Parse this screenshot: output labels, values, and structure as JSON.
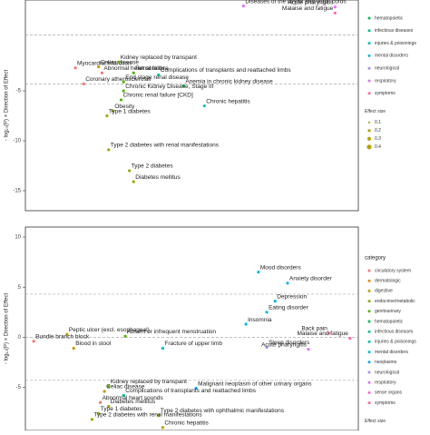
{
  "chart_data": [
    {
      "type": "scatter",
      "y_label": "- log₁₀(P) × Direction of Effect",
      "xlim": [
        0,
        400
      ],
      "ylim": [
        -17,
        4.1
      ],
      "yticks": [
        -15,
        -10,
        -5
      ],
      "hlines": [
        0.6,
        -4.3
      ],
      "x": [
        262,
        372,
        372,
        60,
        88,
        92,
        70,
        112,
        130,
        118,
        160,
        190,
        118,
        115,
        105,
        215,
        98,
        100,
        125,
        130
      ],
      "values": [
        3.5,
        3.4,
        2.8,
        -2.7,
        -2.6,
        -3.2,
        -4.3,
        -2.1,
        -3.2,
        -4.1,
        -3.4,
        -4.5,
        -5.0,
        -5.9,
        -7.0,
        -6.5,
        -7.5,
        -10.9,
        -13.0,
        -14.1
      ],
      "point_labels": [
        "Diseases of the larynx and vocal cords",
        "Acute pharyngitis",
        "Malaise and fatigue",
        "Myocardial infarction",
        "Celiac disease",
        "Abnormal heart sounds",
        "Coronary atherosclerosis",
        "Kidney replaced by transpant",
        "Renal failure",
        "End stage renal disease",
        "Complications of transplants and reattached limbs",
        "Anemia in chronic kidney disease",
        "Chronic Kidney Disease, Stage III",
        "Chronic renal failure [CKD]",
        "Obesity",
        "Chronic hepatitis",
        "Type 1 diabetes",
        "Type 2 diabetes with renal manifestations",
        "Type 2 diabetes",
        "Diabetes mellitus"
      ],
      "colors": [
        "#DF70F8",
        "#DF70F8",
        "#FF66A8",
        "#F8766D",
        "#C49A00",
        "#F8766D",
        "#F8766D",
        "#53B400",
        "#53B400",
        "#53B400",
        "#00C094",
        "#00BC56",
        "#53B400",
        "#53B400",
        "#99A800",
        "#00BFC4",
        "#99A800",
        "#99A800",
        "#99A800",
        "#99A800"
      ],
      "legend": {
        "items": [
          {
            "name": "hematopoietic",
            "color": "#00BC56"
          },
          {
            "name": "infectious diseases",
            "color": "#00C094"
          },
          {
            "name": "injuries & poisonings",
            "color": "#00BFC4"
          },
          {
            "name": "mental disorders",
            "color": "#00B6EB"
          },
          {
            "name": "neurological",
            "color": "#A58AFF"
          },
          {
            "name": "respiratory",
            "color": "#DF70F8"
          },
          {
            "name": "symptoms",
            "color": "#FF66A8"
          }
        ]
      },
      "size_legend": {
        "title": "Effect size",
        "values": [
          0.1,
          0.2,
          0.3,
          0.4
        ]
      }
    },
    {
      "type": "scatter",
      "y_label": "- log₁₀(P) × Direction of Effect",
      "xlim": [
        0,
        400
      ],
      "ylim": [
        -9.3,
        11
      ],
      "yticks": [
        -5,
        0,
        5,
        10
      ],
      "hlines": [
        4.3,
        0,
        -4.3
      ],
      "x": [
        280,
        315,
        300,
        290,
        265,
        50,
        120,
        10,
        58,
        165,
        290,
        340,
        365,
        390,
        100,
        95,
        205,
        118,
        90,
        100,
        88,
        160,
        80,
        165
      ],
      "values": [
        6.5,
        5.4,
        3.6,
        2.5,
        1.3,
        0.3,
        0.1,
        -0.4,
        -1.1,
        -1.1,
        -1.0,
        -1.2,
        0.4,
        -0.1,
        -4.9,
        -5.4,
        -5.1,
        -5.8,
        -6.5,
        -6.9,
        -7.6,
        -7.8,
        -8.2,
        -9.0
      ],
      "point_labels": [
        "Mood disorders",
        "Anxiety disorder",
        "Depression",
        "Eating disorder",
        "Insomnia",
        "Peptic ulcer (excl. esophageal)",
        "Absent or infrequent menstruation",
        "Bundle branch block",
        "Blood in stool",
        "Fracture of upper limb",
        "Sleep disorders",
        "Acute pharyngitis",
        "Back pain",
        "Malaise and fatigue",
        "Kidney replaced by transpant",
        "Celiac disease",
        "Malignant neoplasm of other urinary organs",
        "Complications of transplants and reattached limbs",
        "Abnormal heart sounds",
        "Diabetes mellitus",
        "Type 1 diabetes",
        "Type 2 diabetes with ophthalmic manifestations",
        "Type 2 diabetes with renal manifestations",
        "Chronic hepatitis"
      ],
      "colors": [
        "#00B6EB",
        "#00B6EB",
        "#00B6EB",
        "#00B6EB",
        "#00B6EB",
        "#C49A00",
        "#53B400",
        "#F8766D",
        "#C49A00",
        "#00BFC4",
        "#A58AFF",
        "#DF70F8",
        "#FF66A8",
        "#FF66A8",
        "#53B400",
        "#C49A00",
        "#06A4FF",
        "#00C094",
        "#F8766D",
        "#99A800",
        "#99A800",
        "#99A800",
        "#99A800",
        "#C49A00"
      ],
      "legend": {
        "title": "category",
        "items": [
          {
            "name": "circulatory system",
            "color": "#F8766D"
          },
          {
            "name": "dermatologic",
            "color": "#E38900"
          },
          {
            "name": "digestive",
            "color": "#C49A00"
          },
          {
            "name": "endocrine/metabolic",
            "color": "#99A800"
          },
          {
            "name": "genitourinary",
            "color": "#53B400"
          },
          {
            "name": "hematopoietic",
            "color": "#00BC56"
          },
          {
            "name": "infectious diseases",
            "color": "#00C094"
          },
          {
            "name": "injuries & poisonings",
            "color": "#00BFC4"
          },
          {
            "name": "mental disorders",
            "color": "#00B6EB"
          },
          {
            "name": "neoplasms",
            "color": "#06A4FF"
          },
          {
            "name": "neurological",
            "color": "#A58AFF"
          },
          {
            "name": "respiratory",
            "color": "#DF70F8"
          },
          {
            "name": "sense organs",
            "color": "#FB61D7"
          },
          {
            "name": "symptoms",
            "color": "#FF66A8"
          }
        ]
      },
      "size_legend": {
        "title": "Effect size",
        "values": []
      }
    }
  ]
}
